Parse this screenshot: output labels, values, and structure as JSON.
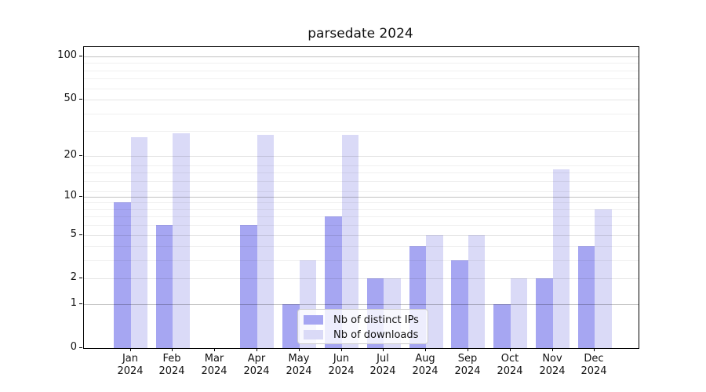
{
  "chart_data": {
    "type": "bar",
    "title": "parsedate 2024",
    "scale": "log1p",
    "categories": [
      "Jan",
      "Feb",
      "Mar",
      "Apr",
      "May",
      "Jun",
      "Jul",
      "Aug",
      "Sep",
      "Oct",
      "Nov",
      "Dec"
    ],
    "x_tick_year": "2024",
    "series": [
      {
        "name": "Nb of distinct IPs",
        "color": "#a6a6f2",
        "values": [
          9,
          6,
          0,
          6,
          1,
          7,
          2,
          4,
          3,
          1,
          2,
          4
        ]
      },
      {
        "name": "Nb of downloads",
        "color": "#dadaf7",
        "values": [
          27,
          29,
          0,
          28,
          3,
          28,
          2,
          5,
          5,
          2,
          16,
          8
        ]
      }
    ],
    "xlabel": "",
    "ylabel": "",
    "ylim": [
      0,
      116
    ],
    "y_ticks": [
      0,
      1,
      2,
      5,
      10,
      20,
      50,
      100
    ],
    "y_tick_labels": [
      "0",
      "1",
      "2",
      "5",
      "10",
      "20",
      "50",
      "100"
    ],
    "y_strong_gridlines": [
      1,
      10,
      100
    ],
    "y_light_gridlines": [
      2,
      5,
      20,
      50
    ],
    "y_minor_gridlines": [
      3,
      4,
      6,
      7,
      8,
      9,
      11,
      13,
      15,
      17,
      30,
      40,
      60,
      70,
      80,
      90
    ],
    "grid": true,
    "legend_position": "lower center-right inside plot"
  },
  "colors": {
    "bar_ips": "#a6a6f2",
    "bar_downloads": "#dadaf7",
    "grid_strong": "rgba(0,0,0,0.24)",
    "grid_light": "rgba(0,0,0,0.10)",
    "grid_minor": "rgba(0,0,0,0.06)",
    "axis": "#000000",
    "text": "#111111",
    "legend_border": "#cccccc",
    "legend_bg": "rgba(255,255,255,0.8)"
  }
}
